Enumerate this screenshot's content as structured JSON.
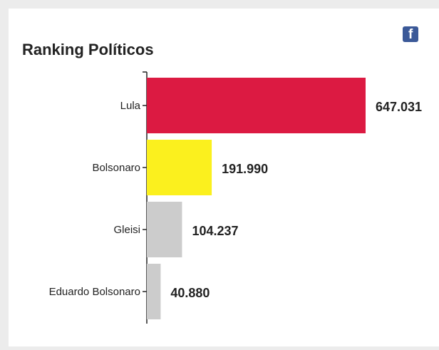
{
  "header": {
    "title": "Ranking Políticos",
    "share_icon": "facebook-icon"
  },
  "colors": {
    "background": "#ececec",
    "card": "#ffffff",
    "axis": "#222222"
  },
  "chart_data": {
    "type": "bar",
    "orientation": "horizontal",
    "title": "Ranking Políticos",
    "categories": [
      "Lula",
      "Bolsonaro",
      "Gleisi",
      "Eduardo Bolsonaro"
    ],
    "values": [
      647031,
      191990,
      104237,
      40880
    ],
    "value_labels": [
      "647.031",
      "191.990",
      "104.237",
      "40.880"
    ],
    "bar_colors": [
      "#dc1a42",
      "#fbf01e",
      "#cccccc",
      "#cccccc"
    ],
    "xlim": [
      0,
      647031
    ],
    "xlabel": "",
    "ylabel": "",
    "grid": false,
    "legend": "none"
  }
}
